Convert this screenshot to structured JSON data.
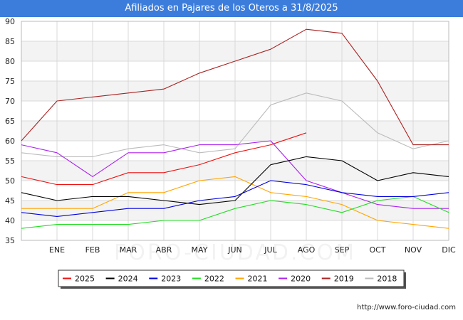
{
  "header": {
    "title": "Afiliados en Pajares de los Oteros a 31/8/2025"
  },
  "footer": {
    "url": "http://www.foro-ciudad.com"
  },
  "watermark": "FORO-CIUDAD.COM",
  "chart_data": {
    "type": "line",
    "title": "Afiliados en Pajares de los Oteros a 31/8/2025",
    "categories": [
      "",
      "ENE",
      "FEB",
      "MAR",
      "ABR",
      "MAY",
      "JUN",
      "JUL",
      "AGO",
      "SEP",
      "OCT",
      "NOV",
      "DIC"
    ],
    "ylim": [
      35,
      90
    ],
    "yticks": [
      35,
      40,
      45,
      50,
      55,
      60,
      65,
      70,
      75,
      80,
      85,
      90
    ],
    "grid": true,
    "legend_position": "bottom",
    "series": [
      {
        "name": "2025",
        "color": "#ee1111",
        "values": [
          51,
          49,
          49,
          52,
          52,
          54,
          57,
          59,
          62,
          null,
          null,
          null,
          null
        ]
      },
      {
        "name": "2024",
        "color": "#000000",
        "values": [
          47,
          45,
          46,
          46,
          45,
          44,
          45,
          54,
          56,
          55,
          50,
          52,
          51
        ]
      },
      {
        "name": "2023",
        "color": "#0000dd",
        "values": [
          42,
          41,
          42,
          43,
          43,
          45,
          46,
          50,
          49,
          47,
          46,
          46,
          47
        ]
      },
      {
        "name": "2022",
        "color": "#22dd22",
        "values": [
          38,
          39,
          39,
          39,
          40,
          40,
          43,
          45,
          44,
          42,
          45,
          46,
          42
        ]
      },
      {
        "name": "2021",
        "color": "#ffa500",
        "values": [
          43,
          43,
          43,
          47,
          47,
          50,
          51,
          47,
          46,
          44,
          40,
          39,
          38
        ]
      },
      {
        "name": "2020",
        "color": "#aa22ee",
        "values": [
          59,
          57,
          51,
          57,
          57,
          59,
          59,
          60,
          50,
          47,
          44,
          43,
          43
        ]
      },
      {
        "name": "2019",
        "color": "#aa2222",
        "values": [
          60,
          70,
          71,
          72,
          73,
          77,
          80,
          83,
          88,
          87,
          75,
          59,
          59
        ]
      },
      {
        "name": "2018",
        "color": "#bbbbbb",
        "values": [
          57,
          56,
          56,
          58,
          59,
          57,
          58,
          69,
          72,
          70,
          62,
          58,
          60
        ]
      }
    ]
  }
}
